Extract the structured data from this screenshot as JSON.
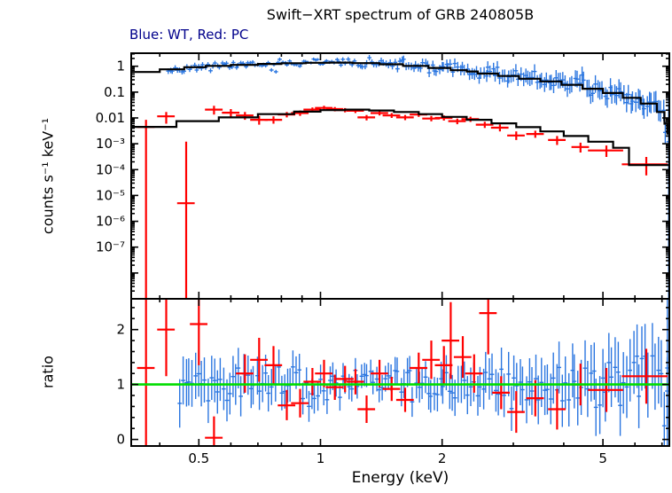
{
  "colors": {
    "wt": "#2b76e0",
    "pc": "#ff0000",
    "model": "#000000",
    "refline": "#00dd00",
    "subtitle": "#00008b",
    "frame": "#000000"
  },
  "chart_data": [
    {
      "type": "scatter",
      "title": "Swift−XRT spectrum of GRB 240805B",
      "subtitle": "Blue: WT, Red: PC",
      "ylabel": "counts s⁻¹ keV⁻¹",
      "xscale": "log",
      "yscale": "log",
      "xlim": [
        0.34,
        7.3
      ],
      "ylim": [
        1e-09,
        3.2
      ],
      "xticks": [
        {
          "v": 0.5,
          "label": "0.5"
        },
        {
          "v": 1,
          "label": "1"
        },
        {
          "v": 2,
          "label": "2"
        },
        {
          "v": 5,
          "label": "5"
        }
      ],
      "yticks": [
        {
          "v": 1,
          "label": "1"
        },
        {
          "v": 0.1,
          "label": "0.1"
        },
        {
          "v": 0.01,
          "label": "0.01"
        },
        {
          "v": 0.001,
          "label": "10⁻³"
        },
        {
          "v": 0.0001,
          "label": "10⁻⁴"
        },
        {
          "v": 1e-05,
          "label": "10⁻⁵"
        },
        {
          "v": 1e-06,
          "label": "10⁻⁶"
        },
        {
          "v": 1e-07,
          "label": "10⁻⁷"
        }
      ],
      "series": {
        "model_wt": {
          "name": "WT folded model",
          "steps": [
            [
              0.34,
              0.6
            ],
            [
              0.4,
              0.76
            ],
            [
              0.46,
              0.92
            ],
            [
              0.52,
              1.03
            ],
            [
              0.6,
              1.13
            ],
            [
              0.7,
              1.23
            ],
            [
              0.8,
              1.31
            ],
            [
              0.92,
              1.36
            ],
            [
              1.05,
              1.38
            ],
            [
              1.2,
              1.32
            ],
            [
              1.4,
              1.19
            ],
            [
              1.6,
              1.03
            ],
            [
              1.85,
              0.86
            ],
            [
              2.1,
              0.7
            ],
            [
              2.3,
              0.63
            ],
            [
              2.45,
              0.52
            ],
            [
              2.75,
              0.42
            ],
            [
              3.1,
              0.33
            ],
            [
              3.5,
              0.26
            ],
            [
              3.95,
              0.19
            ],
            [
              4.45,
              0.135
            ],
            [
              5.0,
              0.092
            ],
            [
              5.6,
              0.06
            ],
            [
              6.2,
              0.036
            ],
            [
              6.8,
              0.017
            ],
            [
              7.1,
              0.006
            ],
            [
              7.22,
              0.0025
            ]
          ]
        },
        "model_pc": {
          "name": "PC folded model",
          "steps": [
            [
              0.34,
              0.0045
            ],
            [
              0.44,
              0.0075
            ],
            [
              0.56,
              0.0105
            ],
            [
              0.7,
              0.014
            ],
            [
              0.86,
              0.0175
            ],
            [
              1.0,
              0.02
            ],
            [
              1.15,
              0.021
            ],
            [
              1.32,
              0.0195
            ],
            [
              1.52,
              0.017
            ],
            [
              1.75,
              0.014
            ],
            [
              2.0,
              0.011
            ],
            [
              2.3,
              0.0085
            ],
            [
              2.65,
              0.0062
            ],
            [
              3.05,
              0.0044
            ],
            [
              3.5,
              0.003
            ],
            [
              4.0,
              0.002
            ],
            [
              4.6,
              0.0012
            ],
            [
              5.3,
              0.0007
            ],
            [
              5.8,
              0.00015
            ]
          ]
        },
        "data_wt": {
          "name": "WT spectrum (dense points scattered about WT model)",
          "generated": true,
          "n": 215,
          "seed": 11,
          "e_range": [
            0.42,
            7.25
          ],
          "model": "model_wt",
          "scatter": {
            "base": 0.08,
            "slope": 0.08
          },
          "err": {
            "base": 0.055,
            "e0": 1.0,
            "k_left": 0.14,
            "k_right": 0.42
          },
          "xbar_frac": 0.012,
          "extra_points": [
            [
              7.27,
              0.0012,
              1e-09,
              0.08
            ]
          ]
        },
        "data_pc": {
          "name": "PC spectrum",
          "xbar_frac": 0.05,
          "points": [
            [
              0.37,
              0.0045,
              1e-09,
              0.0085
            ],
            [
              0.415,
              0.0115,
              0.006,
              0.017
            ],
            [
              0.465,
              5e-06,
              1e-09,
              0.0012
            ],
            [
              0.545,
              0.021,
              0.0135,
              0.0295
            ],
            [
              0.6,
              0.016,
              0.0105,
              0.022
            ],
            [
              0.65,
              0.0125,
              0.0085,
              0.017
            ],
            [
              0.705,
              0.0085,
              0.0055,
              0.012
            ],
            [
              0.765,
              0.0085,
              0.006,
              0.0115
            ],
            [
              0.825,
              0.0135,
              0.0105,
              0.017
            ],
            [
              0.89,
              0.0155,
              0.012,
              0.0195
            ],
            [
              0.955,
              0.021,
              0.017,
              0.0255
            ],
            [
              1.02,
              0.0245,
              0.02,
              0.0295
            ],
            [
              1.085,
              0.022,
              0.018,
              0.0265
            ],
            [
              1.15,
              0.02,
              0.0165,
              0.024
            ],
            [
              1.22,
              0.019,
              0.0155,
              0.023
            ],
            [
              1.3,
              0.0105,
              0.008,
              0.013
            ],
            [
              1.4,
              0.0155,
              0.0125,
              0.019
            ],
            [
              1.5,
              0.0125,
              0.01,
              0.0155
            ],
            [
              1.62,
              0.0105,
              0.0082,
              0.013
            ],
            [
              1.75,
              0.0135,
              0.011,
              0.0165
            ],
            [
              1.88,
              0.0095,
              0.0074,
              0.012
            ],
            [
              2.02,
              0.01,
              0.0079,
              0.0125
            ],
            [
              2.18,
              0.0075,
              0.0057,
              0.0095
            ],
            [
              2.35,
              0.009,
              0.007,
              0.0112
            ],
            [
              2.55,
              0.0055,
              0.0041,
              0.0071
            ],
            [
              2.78,
              0.0042,
              0.003,
              0.0056
            ],
            [
              3.05,
              0.0021,
              0.0014,
              0.003
            ],
            [
              3.4,
              0.0024,
              0.0017,
              0.0032
            ],
            [
              3.85,
              0.0014,
              0.0009,
              0.002
            ],
            [
              4.4,
              0.00075,
              0.00046,
              0.0011
            ],
            [
              5.1,
              0.00055,
              0.00031,
              0.00086,
              0.1
            ],
            [
              6.4,
              0.00016,
              6e-05,
              0.00031,
              0.13
            ]
          ]
        }
      }
    },
    {
      "type": "scatter",
      "ylabel": "ratio",
      "xlabel": "Energy (keV)",
      "xscale": "log",
      "yscale": "linear",
      "xlim": [
        0.34,
        7.3
      ],
      "ylim": [
        -0.12,
        2.56
      ],
      "yticks": [
        {
          "v": 0,
          "label": "0"
        },
        {
          "v": 1,
          "label": "1"
        },
        {
          "v": 2,
          "label": "2"
        }
      ],
      "refline": {
        "y": 1
      },
      "series": {
        "data_wt": {
          "name": "WT data/model ratio (dense points about 1)",
          "generated": true,
          "n": 160,
          "seed": 23,
          "e_range": [
            0.45,
            7.2
          ],
          "mean": 1.0,
          "sigma": {
            "base": 0.16,
            "e0": 1.3,
            "k": 0.13
          },
          "err": {
            "base": 0.21,
            "e0": 1.3,
            "k_left": 0.5,
            "k_right": 0.55
          },
          "xbar_frac": 0.012,
          "extra_points": [
            [
              7.22,
              1.3,
              -0.12,
              2.56
            ]
          ]
        },
        "data_pc": {
          "name": "PC data/model ratio",
          "xbar_frac": 0.05,
          "points": [
            [
              0.37,
              1.3,
              -0.12,
              2.56
            ],
            [
              0.415,
              2.0,
              1.15,
              2.56
            ],
            [
              0.5,
              2.1,
              1.35,
              2.56
            ],
            [
              0.545,
              0.03,
              -0.12,
              0.42
            ],
            [
              0.65,
              1.2,
              0.85,
              1.55
            ],
            [
              0.705,
              1.45,
              1.05,
              1.85
            ],
            [
              0.765,
              1.35,
              1.0,
              1.7
            ],
            [
              0.825,
              0.62,
              0.35,
              0.9
            ],
            [
              0.89,
              0.66,
              0.4,
              0.92
            ],
            [
              0.955,
              1.05,
              0.8,
              1.3
            ],
            [
              1.02,
              1.2,
              0.95,
              1.45
            ],
            [
              1.085,
              0.95,
              0.72,
              1.18
            ],
            [
              1.15,
              1.1,
              0.86,
              1.34
            ],
            [
              1.22,
              1.05,
              0.82,
              1.28
            ],
            [
              1.3,
              0.55,
              0.3,
              0.8
            ],
            [
              1.4,
              1.2,
              0.95,
              1.45
            ],
            [
              1.5,
              0.92,
              0.7,
              1.14
            ],
            [
              1.62,
              0.72,
              0.5,
              0.94
            ],
            [
              1.75,
              1.3,
              1.02,
              1.58
            ],
            [
              1.88,
              1.45,
              1.1,
              1.8
            ],
            [
              2.02,
              1.35,
              1.0,
              1.7
            ],
            [
              2.1,
              1.8,
              1.1,
              2.5
            ],
            [
              2.25,
              1.5,
              1.12,
              1.88
            ],
            [
              2.4,
              1.2,
              0.85,
              1.55
            ],
            [
              2.6,
              2.3,
              1.55,
              2.56
            ],
            [
              2.8,
              0.85,
              0.55,
              1.15
            ],
            [
              3.05,
              0.5,
              0.12,
              0.88
            ],
            [
              3.4,
              0.75,
              0.42,
              1.08
            ],
            [
              3.85,
              0.55,
              0.18,
              0.92
            ],
            [
              4.4,
              1.0,
              0.62,
              1.38
            ],
            [
              5.1,
              0.9,
              0.5,
              1.3,
              0.1
            ],
            [
              6.4,
              1.15,
              0.65,
              1.65,
              0.13
            ]
          ]
        }
      }
    }
  ]
}
